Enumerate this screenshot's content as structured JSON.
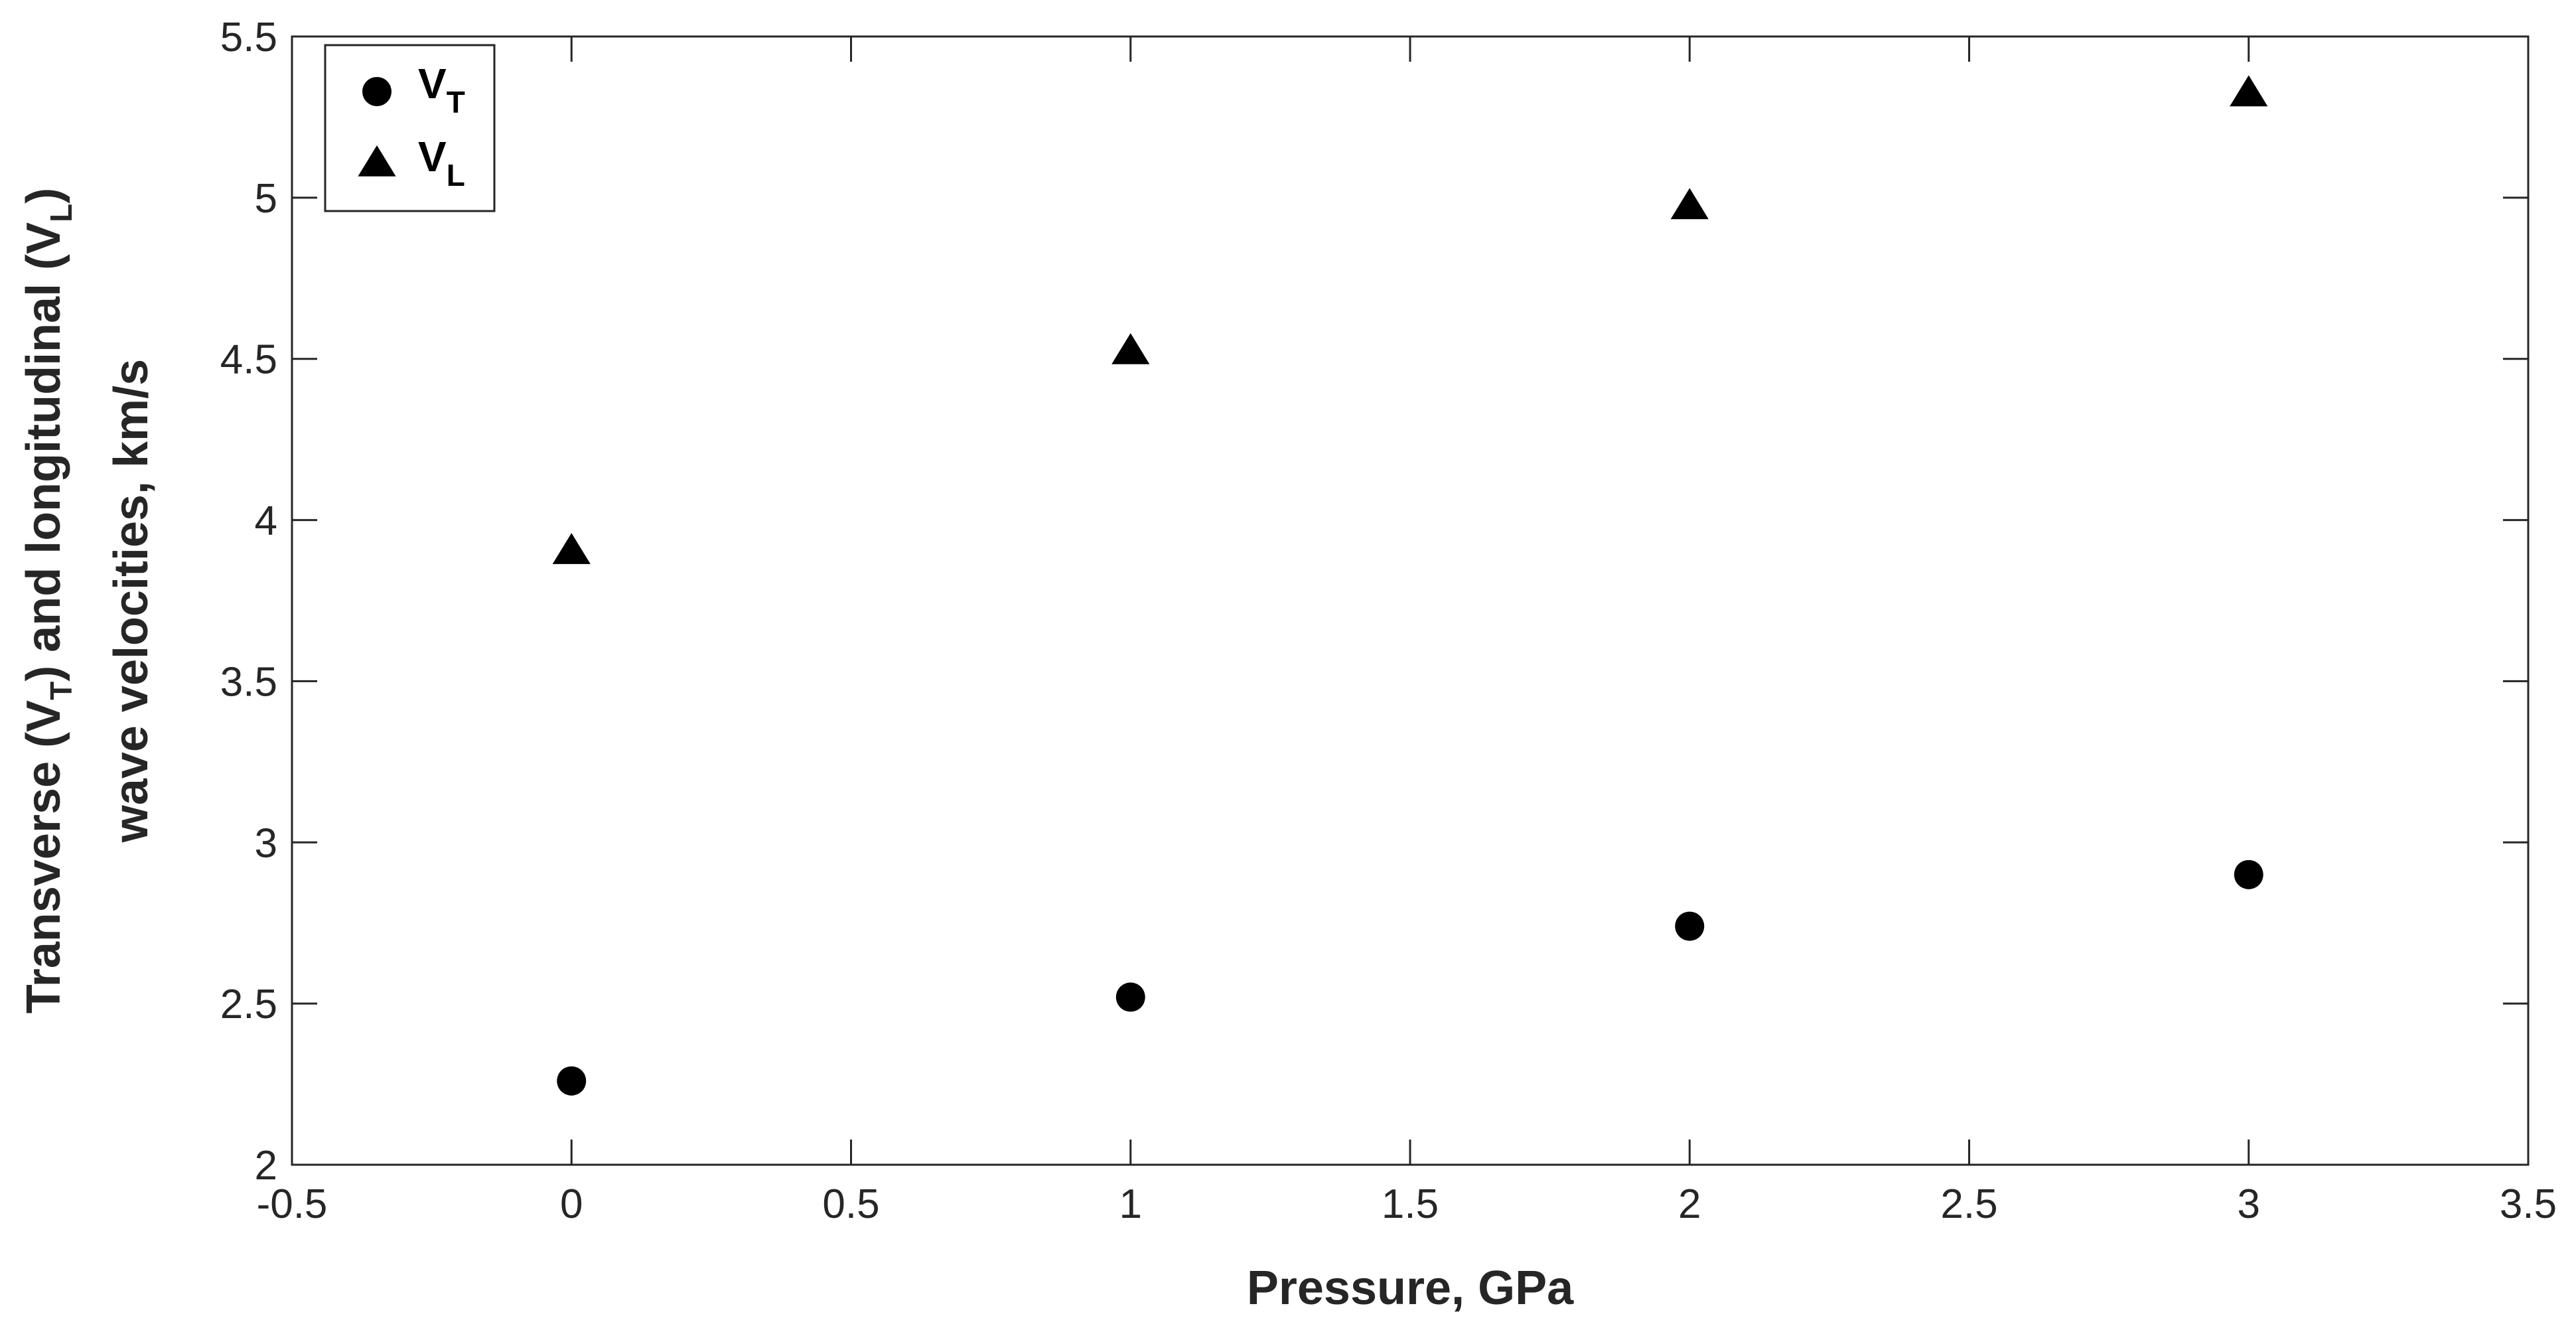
{
  "chart_data": {
    "type": "scatter",
    "xlabel": "Pressure, GPa",
    "ylabel_line1": "Transverse (V",
    "ylabel_line1_sub1": "T",
    "ylabel_line1_mid": ") and longitudinal (V",
    "ylabel_line1_sub2": "L",
    "ylabel_line1_end": ")",
    "ylabel_line2": "wave velocities, km/s",
    "xlim": [
      -0.5,
      3.5
    ],
    "ylim": [
      2,
      5.5
    ],
    "x_ticks": [
      -0.5,
      0,
      0.5,
      1,
      1.5,
      2,
      2.5,
      3,
      3.5
    ],
    "x_tick_labels": [
      "-0.5",
      "0",
      "0.5",
      "1",
      "1.5",
      "2",
      "2.5",
      "3",
      "3.5"
    ],
    "y_ticks": [
      2,
      2.5,
      3,
      3.5,
      4,
      4.5,
      5,
      5.5
    ],
    "y_tick_labels": [
      "2",
      "2.5",
      "3",
      "3.5",
      "4",
      "4.5",
      "5",
      "5.5"
    ],
    "grid": false,
    "legend_position": "top-left",
    "series": [
      {
        "name_main": "V",
        "name_sub": "T",
        "marker": "circle",
        "color": "#000000",
        "x": [
          0,
          1,
          2,
          3
        ],
        "y": [
          2.26,
          2.52,
          2.74,
          2.9
        ]
      },
      {
        "name_main": "V",
        "name_sub": "L",
        "marker": "triangle",
        "color": "#000000",
        "x": [
          0,
          1,
          2,
          3
        ],
        "y": [
          3.9,
          4.52,
          4.97,
          5.32
        ]
      }
    ]
  }
}
